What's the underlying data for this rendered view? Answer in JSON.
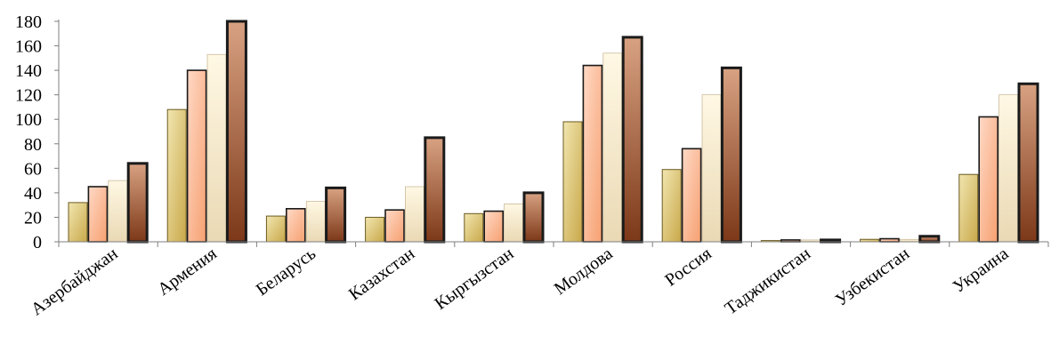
{
  "chart_data": {
    "type": "bar",
    "categories": [
      "Азербайджан",
      "Армения",
      "Беларусь",
      "Казахстан",
      "Кыргызстан",
      "Молдова",
      "Россия",
      "Таджикистан",
      "Узбекистан",
      "Украина"
    ],
    "series": [
      {
        "values": [
          32,
          108,
          21,
          20,
          23,
          98,
          59,
          1,
          2,
          55
        ]
      },
      {
        "values": [
          45,
          140,
          27,
          26,
          25,
          144,
          76,
          1.5,
          2.5,
          102
        ]
      },
      {
        "values": [
          50,
          153,
          33,
          45,
          31,
          154,
          120,
          1.5,
          2,
          120
        ]
      },
      {
        "values": [
          64,
          180,
          44,
          85,
          40,
          167,
          142,
          1.5,
          4.5,
          129
        ]
      }
    ],
    "yticks": [
      0,
      20,
      40,
      60,
      80,
      100,
      120,
      140,
      160,
      180
    ],
    "ylim": [
      0,
      180
    ],
    "title": "",
    "xlabel": "",
    "ylabel": "",
    "legend": "none",
    "grid": false,
    "colors": {
      "series1_light": "#F1E6B0",
      "series1_dark": "#C9A84A",
      "series2_light": "#FFD9C6",
      "series2_dark": "#F6A070",
      "series3_light": "#FFF8E4",
      "series3_dark": "#EAD9B4",
      "series4_light": "#D8A282",
      "series4_dark": "#7C3818",
      "outline": "#1A1A1A"
    }
  }
}
